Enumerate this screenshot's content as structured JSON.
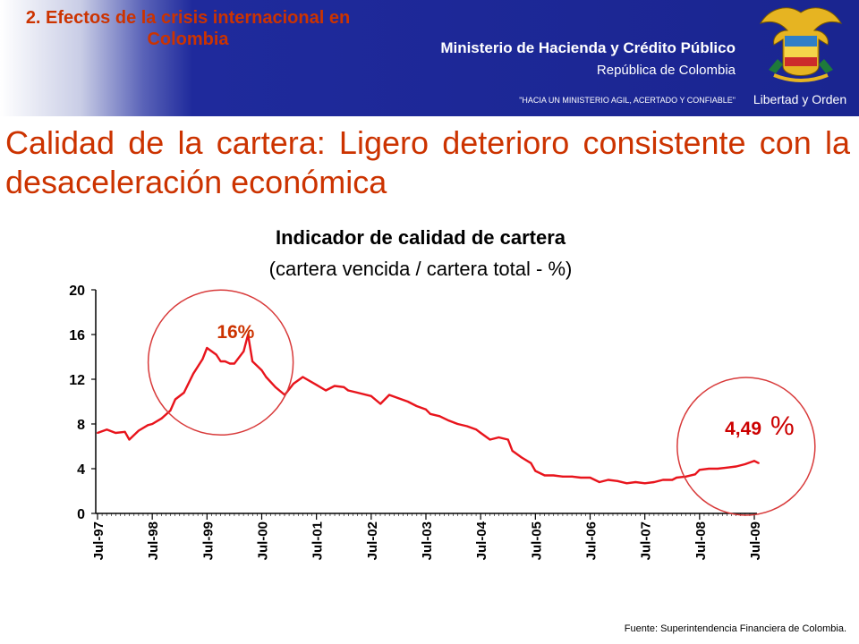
{
  "header": {
    "section_title": "2. Efectos de la crisis internacional en Colombia",
    "ministry": "Ministerio de Hacienda y Crédito Público",
    "republic": "República de Colombia",
    "motto": "\"HACIA UN MINISTERIO AGIL, ACERTADO Y CONFIABLE\"",
    "crest_motto": "Libertad y Orden"
  },
  "slide": {
    "title": "Calidad de la cartera: Ligero deterioro consistente con la desaceleración económica",
    "source": "Fuente: Superintendencia Financiera de Colombia."
  },
  "colors": {
    "accent": "#cc3300",
    "header_blue": "#1a2590",
    "series": "#e8141c"
  },
  "chart_data": {
    "type": "line",
    "title": "Indicador de calidad de cartera",
    "subtitle": "(cartera vencida / cartera total - %)",
    "ylim": [
      0,
      20
    ],
    "yticks": [
      "0",
      "4",
      "8",
      "12",
      "16",
      "20"
    ],
    "xlim": [
      1997.5,
      2009.75
    ],
    "xticks": [
      {
        "label": "Jul-97",
        "x": 1997.5
      },
      {
        "label": "Jul-98",
        "x": 1998.5
      },
      {
        "label": "Jul-99",
        "x": 1999.5
      },
      {
        "label": "Jul-00",
        "x": 2000.5
      },
      {
        "label": "Jul-01",
        "x": 2001.5
      },
      {
        "label": "Jul-02",
        "x": 2002.5
      },
      {
        "label": "Jul-03",
        "x": 2003.5
      },
      {
        "label": "Jul-04",
        "x": 2004.5
      },
      {
        "label": "Jul-05",
        "x": 2005.5
      },
      {
        "label": "Jul-06",
        "x": 2006.5
      },
      {
        "label": "Jul-07",
        "x": 2007.5
      },
      {
        "label": "Jul-08",
        "x": 2008.5
      },
      {
        "label": "Jul-09",
        "x": 2009.5
      }
    ],
    "series": [
      {
        "x": [
          1997.5,
          1997.67,
          1997.83,
          1998.0,
          1998.08,
          1998.25,
          1998.42,
          1998.5,
          1998.67,
          1998.83,
          1998.92,
          1999.08,
          1999.25,
          1999.42,
          1999.5,
          1999.67,
          1999.75,
          1999.83,
          1999.92,
          2000.0,
          2000.17,
          2000.25,
          2000.33,
          2000.5,
          2000.58,
          2000.75,
          2000.92,
          2001.08,
          2001.25,
          2001.5,
          2001.67,
          2001.83,
          2002.0,
          2002.08,
          2002.25,
          2002.5,
          2002.67,
          2002.83,
          2003.0,
          2003.17,
          2003.33,
          2003.5,
          2003.58,
          2003.75,
          2003.92,
          2004.08,
          2004.25,
          2004.42,
          2004.5,
          2004.67,
          2004.83,
          2005.0,
          2005.08,
          2005.25,
          2005.42,
          2005.5,
          2005.67,
          2005.83,
          2006.0,
          2006.17,
          2006.33,
          2006.5,
          2006.67,
          2006.83,
          2007.0,
          2007.17,
          2007.33,
          2007.5,
          2007.67,
          2007.83,
          2008.0,
          2008.08,
          2008.25,
          2008.42,
          2008.5,
          2008.67,
          2008.83,
          2009.0,
          2009.17,
          2009.33,
          2009.5,
          2009.58
        ],
        "y": [
          7.2,
          7.5,
          7.2,
          7.3,
          6.6,
          7.4,
          7.9,
          8.0,
          8.5,
          9.2,
          10.2,
          10.8,
          12.5,
          13.8,
          14.8,
          14.2,
          13.6,
          13.6,
          13.4,
          13.4,
          14.5,
          16.0,
          13.6,
          12.8,
          12.2,
          11.3,
          10.6,
          11.6,
          12.2,
          11.5,
          11.0,
          11.4,
          11.3,
          11.0,
          10.8,
          10.5,
          9.8,
          10.6,
          10.3,
          10.0,
          9.6,
          9.3,
          8.9,
          8.7,
          8.3,
          8.0,
          7.8,
          7.5,
          7.2,
          6.6,
          6.8,
          6.6,
          5.6,
          5.0,
          4.5,
          3.8,
          3.4,
          3.4,
          3.3,
          3.3,
          3.2,
          3.2,
          2.8,
          3.0,
          2.9,
          2.7,
          2.8,
          2.7,
          2.8,
          3.0,
          3.0,
          3.2,
          3.3,
          3.5,
          3.9,
          4.0,
          4.0,
          4.1,
          4.2,
          4.4,
          4.7,
          4.5
        ]
      }
    ],
    "annotations": [
      {
        "label": "16%",
        "x": 1999.5,
        "y": 16
      },
      {
        "label": "4,49",
        "x": 2009.5,
        "y": 4.49
      },
      {
        "label": "%",
        "x": 2009.5,
        "y": 4.49
      }
    ]
  }
}
